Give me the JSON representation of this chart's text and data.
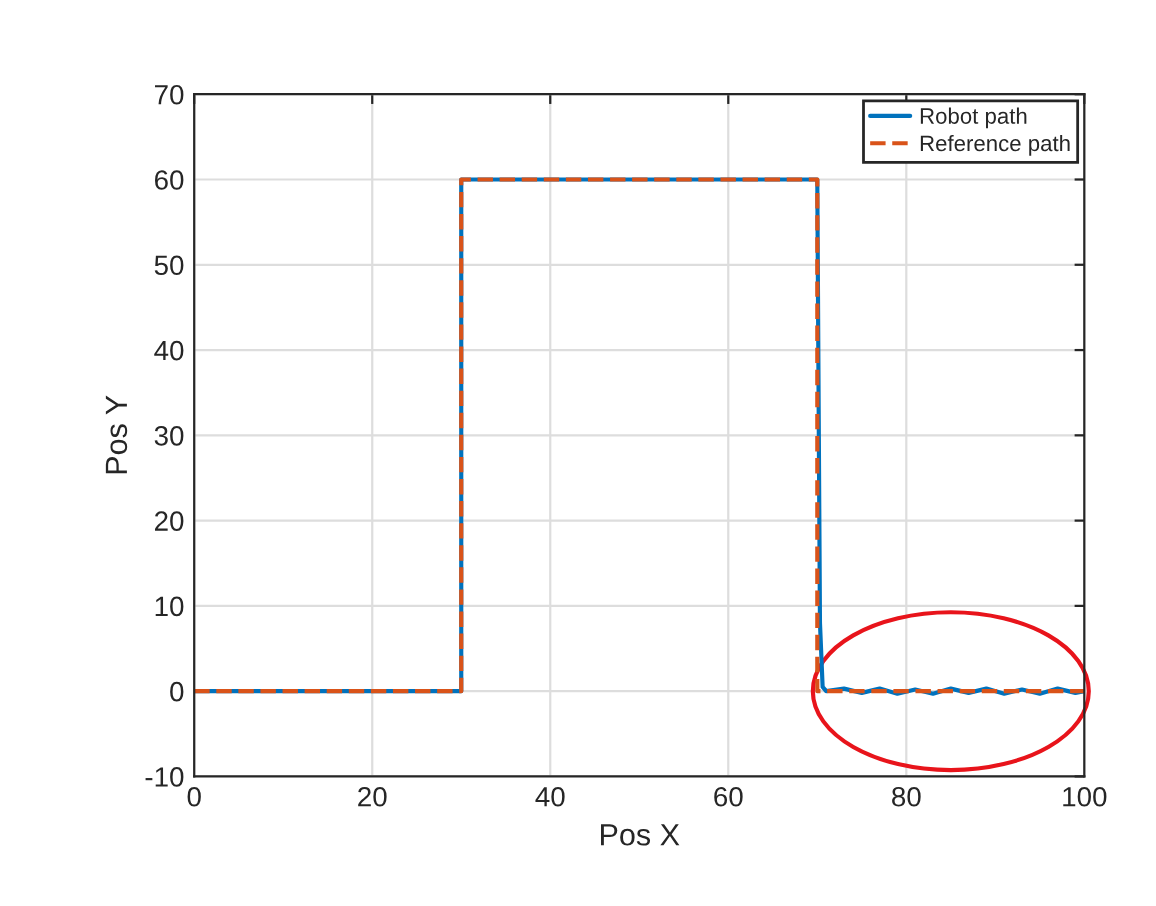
{
  "chart_data": {
    "type": "line",
    "xlabel": "Pos X",
    "ylabel": "Pos Y",
    "xlim": [
      0,
      100
    ],
    "ylim": [
      -10,
      70
    ],
    "xticks": [
      0,
      20,
      40,
      60,
      80,
      100
    ],
    "yticks": [
      -10,
      0,
      10,
      20,
      30,
      40,
      50,
      60,
      70
    ],
    "grid": true,
    "legend": "top right",
    "series": [
      {
        "name": "Robot path",
        "color": "#0072bd",
        "line_style": "solid",
        "x": [
          0,
          30,
          30,
          70,
          70.3,
          70.6,
          71,
          73,
          75,
          77,
          79,
          81,
          83,
          85,
          87,
          89,
          91,
          93,
          95,
          97,
          99,
          100
        ],
        "values": [
          0,
          0,
          60,
          60,
          8,
          0.5,
          0,
          0.3,
          -0.2,
          0.3,
          -0.3,
          0.2,
          -0.3,
          0.3,
          -0.2,
          0.3,
          -0.3,
          0.2,
          -0.3,
          0.3,
          -0.2,
          0
        ]
      },
      {
        "name": "Reference path",
        "color": "#d95319",
        "line_style": "dashed",
        "x": [
          0,
          30,
          30,
          70,
          70,
          100
        ],
        "values": [
          0,
          0,
          60,
          60,
          0,
          0
        ]
      }
    ]
  }
}
